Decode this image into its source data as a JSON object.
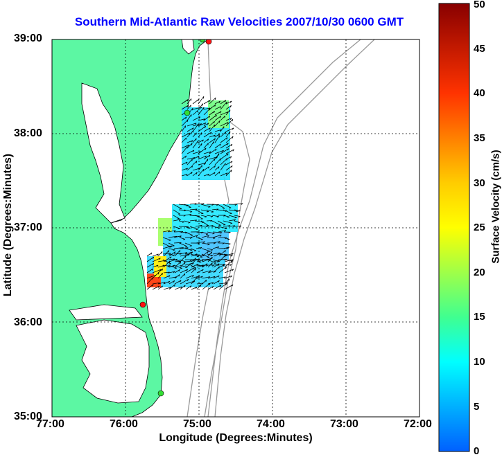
{
  "title": "Southern Mid-Atlantic Raw Velocities 2007/10/30 0600 GMT",
  "xlabel": "Longitude (Degrees:Minutes)",
  "ylabel": "Latitude (Degrees:Minutes)",
  "colorbar": {
    "label": "Surface Velocity (cm/s)",
    "range": [
      0,
      50
    ],
    "ticks": [
      "0",
      "5",
      "10",
      "15",
      "20",
      "25",
      "30",
      "35",
      "40",
      "45",
      "50"
    ]
  },
  "axes": {
    "lon_range": [
      -77,
      -72
    ],
    "lat_range": [
      35,
      39
    ],
    "x_ticks": [
      "77:00",
      "76:00",
      "75:00",
      "74:00",
      "73:00",
      "72:00"
    ],
    "y_ticks": [
      "35:00",
      "36:00",
      "37:00",
      "38:00",
      "39:00"
    ],
    "grid": true
  },
  "colors": {
    "land": "#5cf7a3",
    "title": "#0000ff",
    "bathymetry": "#999999",
    "station_green": "#33dd33",
    "station_red": "#ff1111"
  }
}
